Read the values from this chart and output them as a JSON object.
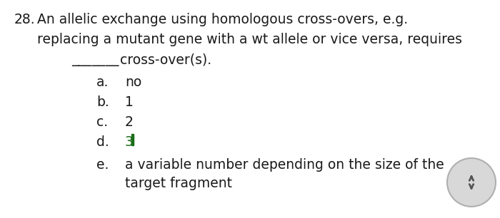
{
  "background_color": "#ffffff",
  "text_color": "#1a1a1a",
  "highlight_color": "#1a6e1a",
  "cursor_color": "#1a6e1a",
  "font_size": 13.5,
  "q_num": "28.",
  "line1": "An allelic exchange using homologous cross-overs, e.g.",
  "line2": "replacing a mutant gene with a wt allele or vice versa, requires",
  "blank_text": "_______",
  "line3": " cross-over(s).",
  "options": [
    {
      "label": "a.",
      "text": "no",
      "highlighted": false
    },
    {
      "label": "b.",
      "text": "1",
      "highlighted": false
    },
    {
      "label": "c.",
      "text": "2",
      "highlighted": false
    },
    {
      "label": "d.",
      "text": "3",
      "highlighted": true
    },
    {
      "label": "e.",
      "text1": "a variable number depending on the size of the",
      "text2": "target fragment",
      "highlighted": false
    }
  ],
  "nav_circle_color": "#d8d8d8",
  "nav_circle_edge": "#b0b0b0",
  "nav_arrow_color": "#555555"
}
